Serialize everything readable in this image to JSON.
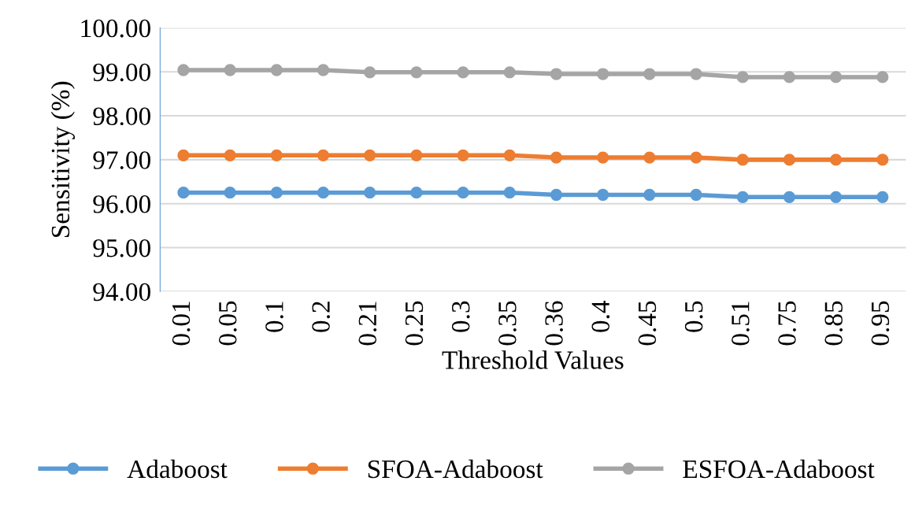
{
  "chart_data": {
    "type": "line",
    "xlabel": "Threshold Values",
    "ylabel": "Sensitivity (%)",
    "categories": [
      "0.01",
      "0.05",
      "0.1",
      "0.2",
      "0.21",
      "0.25",
      "0.3",
      "0.35",
      "0.36",
      "0.4",
      "0.45",
      "0.5",
      "0.51",
      "0.75",
      "0.85",
      "0.95"
    ],
    "series": [
      {
        "name": "Adaboost",
        "color": "#5b9bd5",
        "values": [
          96.25,
          96.25,
          96.25,
          96.25,
          96.25,
          96.25,
          96.25,
          96.25,
          96.2,
          96.2,
          96.2,
          96.2,
          96.15,
          96.15,
          96.15,
          96.15
        ]
      },
      {
        "name": "SFOA-Adaboost",
        "color": "#ed7d31",
        "values": [
          97.1,
          97.1,
          97.1,
          97.1,
          97.1,
          97.1,
          97.1,
          97.1,
          97.05,
          97.05,
          97.05,
          97.05,
          97.0,
          97.0,
          97.0,
          97.0
        ]
      },
      {
        "name": "ESFOA-Adaboost",
        "color": "#a5a5a5",
        "values": [
          99.04,
          99.04,
          99.04,
          99.04,
          98.99,
          98.99,
          98.99,
          98.99,
          98.95,
          98.95,
          98.95,
          98.95,
          98.88,
          98.88,
          98.88,
          98.88
        ]
      }
    ],
    "ylim": [
      94,
      100
    ],
    "yticks": [
      {
        "value": 94,
        "label": "94.00"
      },
      {
        "value": 95,
        "label": "95.00"
      },
      {
        "value": 96,
        "label": "96.00"
      },
      {
        "value": 97,
        "label": "97.00"
      },
      {
        "value": 98,
        "label": "98.00"
      },
      {
        "value": 99,
        "label": "99.00"
      },
      {
        "value": 100,
        "label": "100.00"
      }
    ],
    "grid": "y",
    "legend": "bottom",
    "marker": "circle",
    "line_style": "solid"
  }
}
